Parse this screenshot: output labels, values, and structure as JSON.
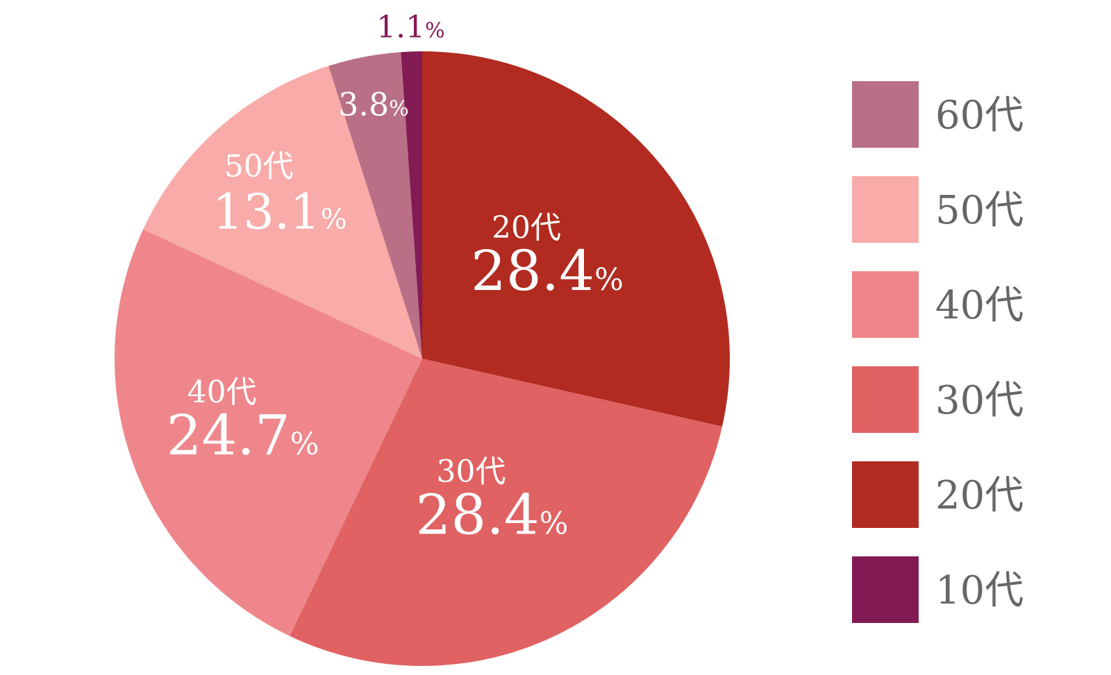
{
  "chart_data": {
    "type": "pie",
    "start_angle_deg": 0,
    "direction": "clockwise",
    "slices": [
      {
        "label": "20代",
        "value": 28.4,
        "value_text": "28.4",
        "unit": "%",
        "color": "#b22b20",
        "text_color": "#ffffff"
      },
      {
        "label": "30代",
        "value": 28.4,
        "value_text": "28.4",
        "unit": "%",
        "color": "#e06262",
        "text_color": "#ffffff"
      },
      {
        "label": "40代",
        "value": 24.7,
        "value_text": "24.7",
        "unit": "%",
        "color": "#ee868b",
        "text_color": "#ffffff"
      },
      {
        "label": "50代",
        "value": 13.1,
        "value_text": "13.1",
        "unit": "%",
        "color": "#f8aba8",
        "text_color": "#ffffff"
      },
      {
        "label": "60代",
        "value": 3.8,
        "value_text": "3.8",
        "unit": "%",
        "color": "#b96f86",
        "text_color": "#ffffff"
      },
      {
        "label": "10代",
        "value": 1.1,
        "value_text": "1.1",
        "unit": "%",
        "color": "#821b54",
        "text_color": "#821b54"
      }
    ],
    "legend": {
      "placement": "right",
      "text_color": "#666666",
      "items": [
        {
          "label": "60代",
          "color": "#b96f86"
        },
        {
          "label": "50代",
          "color": "#f8aba8"
        },
        {
          "label": "40代",
          "color": "#ee868b"
        },
        {
          "label": "30代",
          "color": "#e06262"
        },
        {
          "label": "20代",
          "color": "#b22b20"
        },
        {
          "label": "10代",
          "color": "#821b54"
        }
      ]
    }
  }
}
